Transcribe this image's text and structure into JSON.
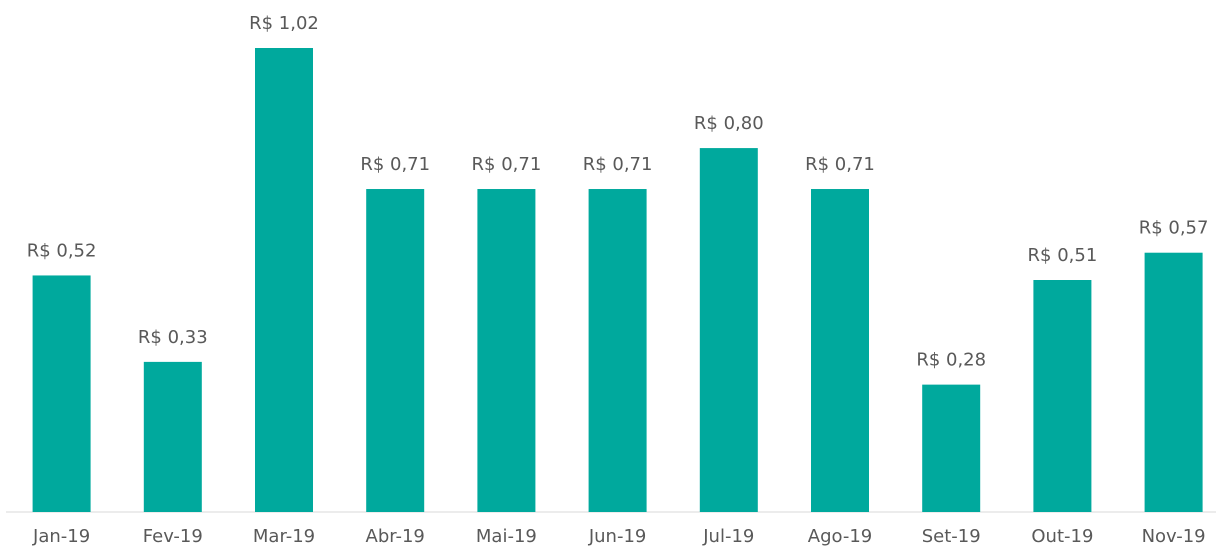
{
  "chart_data": {
    "type": "bar",
    "categories": [
      "Jan-19",
      "Fev-19",
      "Mar-19",
      "Abr-19",
      "Mai-19",
      "Jun-19",
      "Jul-19",
      "Ago-19",
      "Set-19",
      "Out-19",
      "Nov-19"
    ],
    "values": [
      0.52,
      0.33,
      1.02,
      0.71,
      0.71,
      0.71,
      0.8,
      0.71,
      0.28,
      0.51,
      0.57
    ],
    "value_labels": [
      "R$ 0,52",
      "R$ 0,33",
      "R$ 1,02",
      "R$ 0,71",
      "R$ 0,71",
      "R$ 0,71",
      "R$ 0,80",
      "R$ 0,71",
      "R$ 0,28",
      "R$ 0,51",
      "R$ 0,57"
    ],
    "color": "#00a99d"
  }
}
